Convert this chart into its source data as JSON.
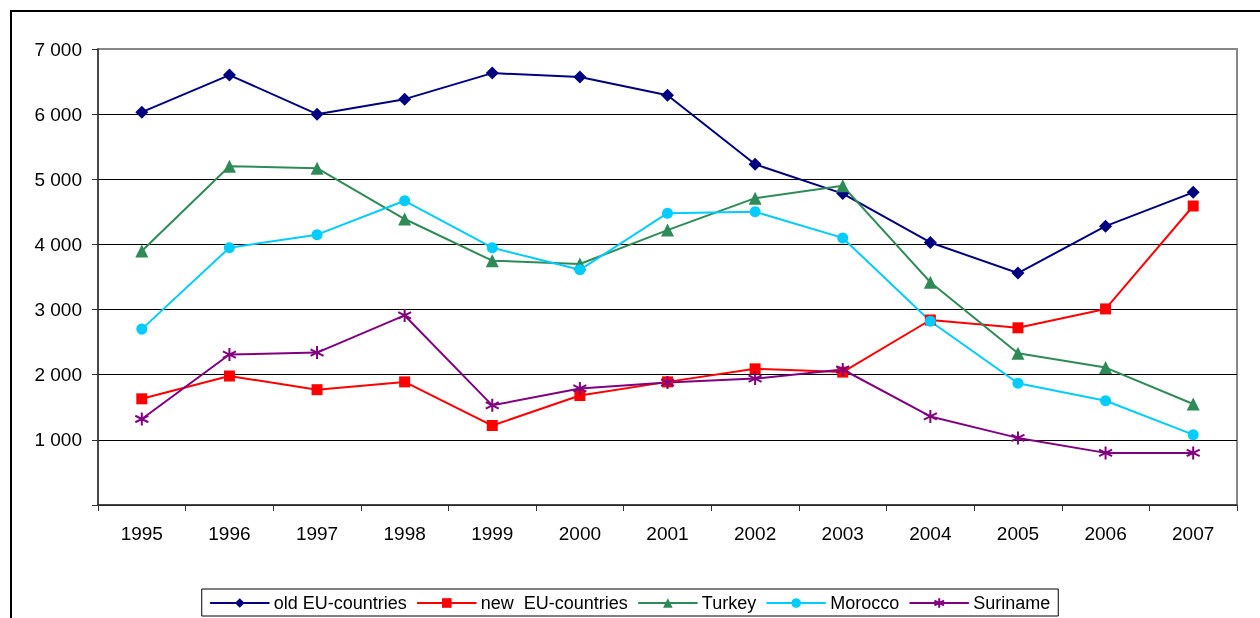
{
  "chart_data": {
    "type": "line",
    "categories": [
      "1995",
      "1996",
      "1997",
      "1998",
      "1999",
      "2000",
      "2001",
      "2002",
      "2003",
      "2004",
      "2005",
      "2006",
      "2007"
    ],
    "series": [
      {
        "name": "old EU-countries",
        "color": "#000080",
        "marker": "diamond",
        "values": [
          6030,
          6600,
          6000,
          6230,
          6630,
          6570,
          6290,
          5230,
          4780,
          4030,
          3560,
          4280,
          4800
        ]
      },
      {
        "name": "new  EU-countries",
        "color": "#ff0000",
        "marker": "square",
        "values": [
          1630,
          1980,
          1770,
          1890,
          1220,
          1680,
          1890,
          2090,
          2040,
          2840,
          2720,
          3010,
          4590
        ]
      },
      {
        "name": "Turkey",
        "color": "#2e8b57",
        "marker": "triangle",
        "values": [
          3900,
          5200,
          5170,
          4390,
          3750,
          3700,
          4220,
          4710,
          4900,
          3420,
          2330,
          2110,
          1550
        ]
      },
      {
        "name": "Morocco",
        "color": "#00ccff",
        "marker": "circle",
        "values": [
          2700,
          3950,
          4150,
          4670,
          3950,
          3610,
          4480,
          4500,
          4100,
          2820,
          1870,
          1600,
          1080
        ]
      },
      {
        "name": "Suriname",
        "color": "#800080",
        "marker": "cross",
        "values": [
          1320,
          2310,
          2340,
          2910,
          1530,
          1790,
          1880,
          1940,
          2080,
          1360,
          1030,
          800,
          800
        ]
      }
    ],
    "ylim": [
      0,
      7000
    ],
    "yticks": [
      {
        "value": 0,
        "label": null
      },
      {
        "value": 1000,
        "label": "1 000"
      },
      {
        "value": 2000,
        "label": "2 000"
      },
      {
        "value": 3000,
        "label": "3 000"
      },
      {
        "value": 4000,
        "label": "4 000"
      },
      {
        "value": 5000,
        "label": "5 000"
      },
      {
        "value": 6000,
        "label": "6 000"
      },
      {
        "value": 7000,
        "label": "7 000"
      }
    ],
    "grid": "y",
    "legend": "bottom",
    "line_style": "solid"
  }
}
